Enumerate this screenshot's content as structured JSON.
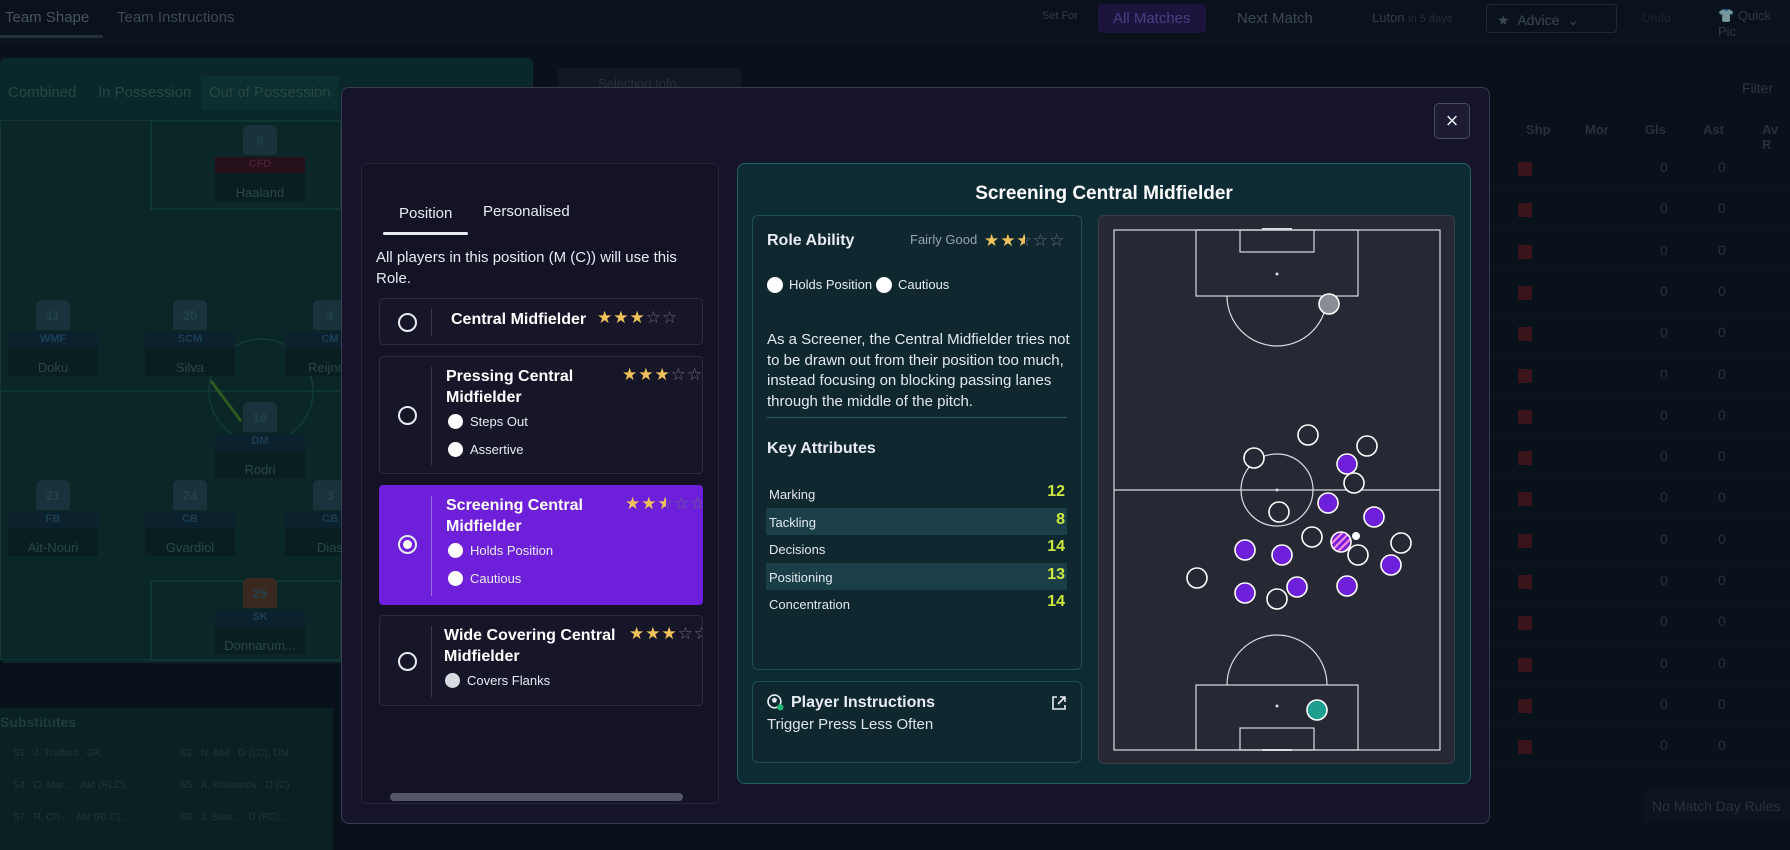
{
  "background": {
    "topbar": {
      "tab_team_shape": "Team Shape",
      "tab_team_instructions": "Team Instructions",
      "set_for_label": "Set For",
      "all_matches": "All Matches",
      "next_match": "Next Match",
      "opponent": "Luton",
      "opponent_when": "in 5 days",
      "advice": "Advice",
      "undo": "Undo",
      "quick_pick": "Quick Pic"
    },
    "pitch_tabs": [
      "Combined",
      "In Possession",
      "Out of Possession"
    ],
    "selection_info": "Selection Info",
    "filter": "Filter",
    "columns": [
      "Shp",
      "Mor",
      "Gls",
      "Ast",
      "Av R"
    ],
    "players": [
      {
        "num": "9",
        "pos": "CFD",
        "name": "Haaland"
      },
      {
        "num": "11",
        "pos": "WMF",
        "name": "Doku"
      },
      {
        "num": "20",
        "pos": "SCM",
        "name": "Silva"
      },
      {
        "num": "4",
        "pos": "CM",
        "name": "Reijnde"
      },
      {
        "num": "16",
        "pos": "DM",
        "name": "Rodri"
      },
      {
        "num": "21",
        "pos": "FB",
        "name": "Ait-Nouri"
      },
      {
        "num": "24",
        "pos": "CB",
        "name": "Gvardiol"
      },
      {
        "num": "3",
        "pos": "CB",
        "name": "Dias"
      },
      {
        "num": "25",
        "pos": "SK",
        "name": "Donnarum..."
      }
    ],
    "substitutes_title": "Substitutes",
    "substitutes": [
      {
        "slot": "S1",
        "name": "J. Trafford",
        "pos": "GK"
      },
      {
        "slot": "S2",
        "name": "N. Aké",
        "pos": "D (LC), DM"
      },
      {
        "slot": "S4",
        "name": "O. Mar...",
        "pos": "AM (RLC)..."
      },
      {
        "slot": "S5",
        "name": "A. Khusanov",
        "pos": "D (C)"
      },
      {
        "slot": "S7",
        "name": "R. Ch...",
        "pos": "AM (RLC)..."
      },
      {
        "slot": "S8",
        "name": "J. Ston...",
        "pos": "D (RC)..."
      }
    ],
    "row_values": [
      "0",
      "0"
    ],
    "no_match_day_rules": "No Match Day Rules"
  },
  "modal": {
    "close_icon": "close-icon",
    "tabs": [
      "Position",
      "Personalised"
    ],
    "info_text": "All players in this position (M (C)) will use this Role.",
    "roles": [
      {
        "name": "Central Midfielder",
        "stars": 3,
        "traits": []
      },
      {
        "name": "Pressing Central Midfielder",
        "stars": 3,
        "traits": [
          "Steps Out",
          "Assertive"
        ]
      },
      {
        "name": "Screening Central Midfielder",
        "stars": 2.5,
        "traits": [
          "Holds Position",
          "Cautious"
        ],
        "selected": true
      },
      {
        "name": "Wide Covering Central Midfielder",
        "stars": 3,
        "traits": [
          "Covers Flanks"
        ]
      }
    ],
    "detail": {
      "title": "Screening Central Midfielder",
      "role_ability_label": "Role Ability",
      "rating_text": "Fairly Good",
      "stars": 2.5,
      "traits": [
        "Holds Position",
        "Cautious"
      ],
      "description": "As a Screener, the Central Midfielder tries not to be drawn out from their position too much, instead focusing on blocking passing lanes through the middle of the pitch.",
      "key_attributes_title": "Key Attributes",
      "attributes": [
        {
          "name": "Marking",
          "value": "12"
        },
        {
          "name": "Tackling",
          "value": "8"
        },
        {
          "name": "Decisions",
          "value": "14"
        },
        {
          "name": "Positioning",
          "value": "13"
        },
        {
          "name": "Concentration",
          "value": "14"
        }
      ],
      "player_instructions_title": "Player Instructions",
      "player_instructions_text": "Trigger Press Less Often"
    },
    "colors": {
      "accent": "#6e1fd9",
      "attr_value": "#cde83e",
      "star": "#f0c25c",
      "teal": "#1f9e90"
    }
  }
}
